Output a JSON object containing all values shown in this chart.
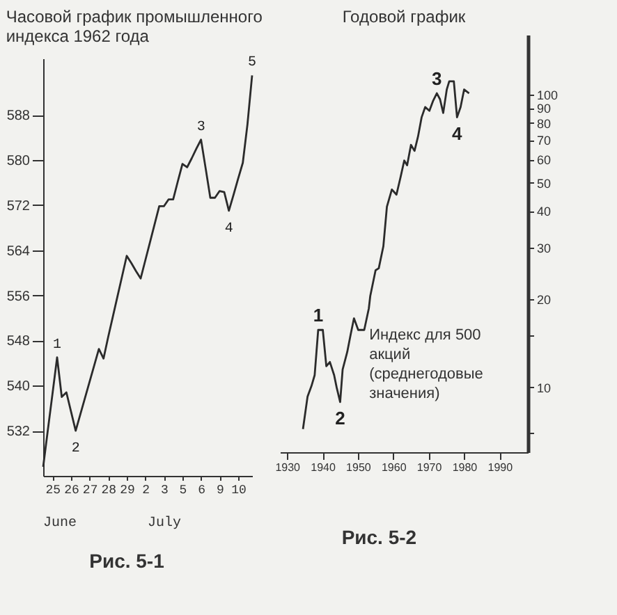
{
  "chart_data": [
    {
      "type": "line",
      "title": "Часовой график промышленного индекса 1962 года",
      "categories": [
        null,
        null,
        "25",
        null,
        null,
        null,
        "26",
        null,
        null,
        null,
        "27",
        null,
        null,
        null,
        "28",
        null,
        null,
        null,
        "29",
        null,
        null,
        null,
        "2",
        null,
        null,
        null,
        "3",
        null,
        null,
        null,
        "5",
        null,
        null,
        null,
        "6",
        null,
        null,
        null,
        "9",
        null,
        null,
        null,
        "10",
        null,
        null,
        null
      ],
      "series": [
        {
          "color": "#2b2b2b",
          "values": [
            525.6,
            532.1,
            538.5,
            545,
            538,
            538.8,
            535.4,
            532,
            534.9,
            537.8,
            540.7,
            543.6,
            546.5,
            544.8,
            548.6,
            552.2,
            555.8,
            559.4,
            563,
            561.7,
            560.3,
            559,
            562.2,
            565.4,
            568.6,
            571.8,
            571.8,
            573,
            573,
            576.2,
            579.3,
            578.7,
            580.3,
            582,
            583.6,
            578.5,
            573.3,
            573.3,
            574.5,
            574.3,
            571,
            573.8,
            576.7,
            579.5,
            586.3,
            595
          ]
        }
      ],
      "ylim": [
        524,
        598
      ],
      "yticks": [
        532,
        540,
        548,
        556,
        564,
        572,
        580,
        588
      ],
      "grid": false,
      "annotations": [
        {
          "text": "1",
          "y": 545
        },
        {
          "text": "2",
          "y": 532
        },
        {
          "text": "3",
          "y": 583.6
        },
        {
          "text": "4",
          "y": 571
        },
        {
          "text": "5",
          "y": 595
        },
        "June",
        "July",
        "Рис. 5-1"
      ]
    },
    {
      "type": "line",
      "title": "Годовой график",
      "x": [
        1934.5,
        1935.8,
        1936.9,
        1937.8,
        1938.8,
        1940.1,
        1941.1,
        1942.1,
        1943.3,
        1944,
        1945,
        1945.7,
        1947,
        1947.9,
        1948.9,
        1950.1,
        1951.8,
        1953.1,
        1953.5,
        1955,
        1955.9,
        1957.2,
        1958.2,
        1959.6,
        1960.9,
        1962.1,
        1963.1,
        1963.9,
        1965,
        1966,
        1967,
        1968,
        1969,
        1970.2,
        1971.2,
        1972.3,
        1973.2,
        1974.1,
        1975.1,
        1975.8,
        1977.1,
        1978,
        1979,
        1980,
        1981.4
      ],
      "series": [
        {
          "color": "#2b2b2b",
          "values": [
            7.2,
            9.3,
            10.1,
            11,
            15.7,
            15.7,
            11.8,
            12.2,
            11,
            10,
            8.9,
            11.5,
            13.2,
            15,
            17.2,
            15.7,
            15.7,
            18.6,
            20.5,
            25.1,
            25.5,
            30.3,
            41.4,
            47.4,
            45.5,
            52.5,
            59.5,
            57.3,
            67.3,
            64.2,
            72,
            83.6,
            90.6,
            88,
            94.9,
            101,
            96.3,
            86.5,
            104,
            111,
            111,
            83.6,
            90.6,
            104,
            101
          ]
        }
      ],
      "xlim": [
        1928,
        1998
      ],
      "xticks": [
        1930,
        1940,
        1950,
        1960,
        1970,
        1980,
        1990
      ],
      "ylim": [
        6,
        160
      ],
      "log": "y",
      "yticks": [
        {
          "value": 7,
          "label": null
        },
        10,
        {
          "value": 15,
          "label": null
        },
        20,
        30,
        40,
        50,
        60,
        70,
        80,
        90,
        100
      ],
      "grid": false,
      "annotations": [
        {
          "text": "1",
          "x": 1938.8,
          "y": 15.7
        },
        {
          "text": "2",
          "x": 1945,
          "y": 8.9
        },
        {
          "text": "3",
          "x": 1972.3,
          "y": 101
        },
        {
          "text": "4",
          "x": 1978,
          "y": 83.6
        },
        "Индекс для 500 акций (среднегодовые значения)",
        "Рис. 5-2"
      ]
    }
  ]
}
